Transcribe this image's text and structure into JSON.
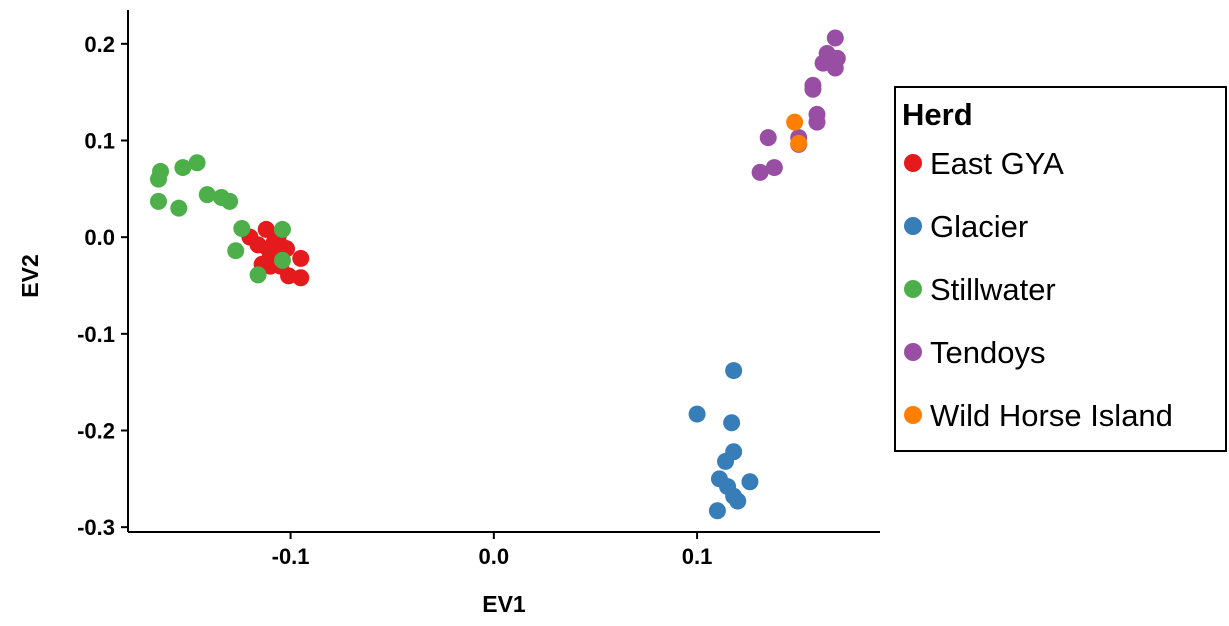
{
  "chart_data": {
    "type": "scatter",
    "title": "",
    "xlabel": "EV1",
    "ylabel": "EV2",
    "xlim": [
      -0.18,
      0.19
    ],
    "ylim": [
      -0.305,
      0.235
    ],
    "xticks": [
      -0.1,
      0.0,
      0.1
    ],
    "xtick_labels": [
      "-0.1",
      "0.0",
      "0.1"
    ],
    "yticks": [
      0.2,
      0.1,
      0.0,
      -0.1,
      -0.2,
      -0.3
    ],
    "ytick_labels": [
      "0.2",
      "0.1",
      "0.0",
      "-0.1",
      "-0.2",
      "-0.3"
    ],
    "grid": false,
    "legend": {
      "title": "Herd",
      "position": "right"
    },
    "series": [
      {
        "name": "East GYA",
        "color": "#e41a1c",
        "points": [
          [
            -0.12,
            0.0
          ],
          [
            -0.116,
            -0.008
          ],
          [
            -0.112,
            0.008
          ],
          [
            -0.111,
            -0.012
          ],
          [
            -0.11,
            -0.02
          ],
          [
            -0.108,
            -0.005
          ],
          [
            -0.107,
            -0.015
          ],
          [
            -0.105,
            -0.03
          ],
          [
            -0.104,
            -0.01
          ],
          [
            -0.102,
            -0.012
          ],
          [
            -0.101,
            -0.04
          ],
          [
            -0.114,
            -0.028
          ],
          [
            -0.095,
            -0.022
          ],
          [
            -0.095,
            -0.042
          ],
          [
            -0.11,
            -0.03
          ],
          [
            -0.106,
            0.002
          ]
        ]
      },
      {
        "name": "Glacier",
        "color": "#377eb8",
        "points": [
          [
            0.118,
            -0.138
          ],
          [
            0.1,
            -0.183
          ],
          [
            0.117,
            -0.192
          ],
          [
            0.118,
            -0.222
          ],
          [
            0.114,
            -0.232
          ],
          [
            0.111,
            -0.25
          ],
          [
            0.115,
            -0.258
          ],
          [
            0.118,
            -0.268
          ],
          [
            0.12,
            -0.273
          ],
          [
            0.126,
            -0.253
          ],
          [
            0.11,
            -0.283
          ]
        ]
      },
      {
        "name": "Stillwater",
        "color": "#4daf4a",
        "points": [
          [
            -0.164,
            0.068
          ],
          [
            -0.165,
            0.06
          ],
          [
            -0.165,
            0.037
          ],
          [
            -0.155,
            0.03
          ],
          [
            -0.153,
            0.072
          ],
          [
            -0.146,
            0.077
          ],
          [
            -0.141,
            0.044
          ],
          [
            -0.134,
            0.041
          ],
          [
            -0.13,
            0.037
          ],
          [
            -0.124,
            0.009
          ],
          [
            -0.127,
            -0.014
          ],
          [
            -0.104,
            0.008
          ],
          [
            -0.104,
            -0.024
          ],
          [
            -0.116,
            -0.039
          ]
        ]
      },
      {
        "name": "Tendoys",
        "color": "#984ea3",
        "points": [
          [
            0.168,
            0.206
          ],
          [
            0.169,
            0.185
          ],
          [
            0.164,
            0.19
          ],
          [
            0.162,
            0.18
          ],
          [
            0.168,
            0.175
          ],
          [
            0.157,
            0.157
          ],
          [
            0.157,
            0.153
          ],
          [
            0.159,
            0.127
          ],
          [
            0.159,
            0.119
          ],
          [
            0.135,
            0.103
          ],
          [
            0.15,
            0.103
          ],
          [
            0.15,
            0.096
          ],
          [
            0.138,
            0.072
          ],
          [
            0.131,
            0.067
          ]
        ]
      },
      {
        "name": "Wild Horse Island",
        "color": "#ff7f00",
        "points": [
          [
            0.148,
            0.119
          ],
          [
            0.15,
            0.097
          ]
        ]
      }
    ]
  }
}
